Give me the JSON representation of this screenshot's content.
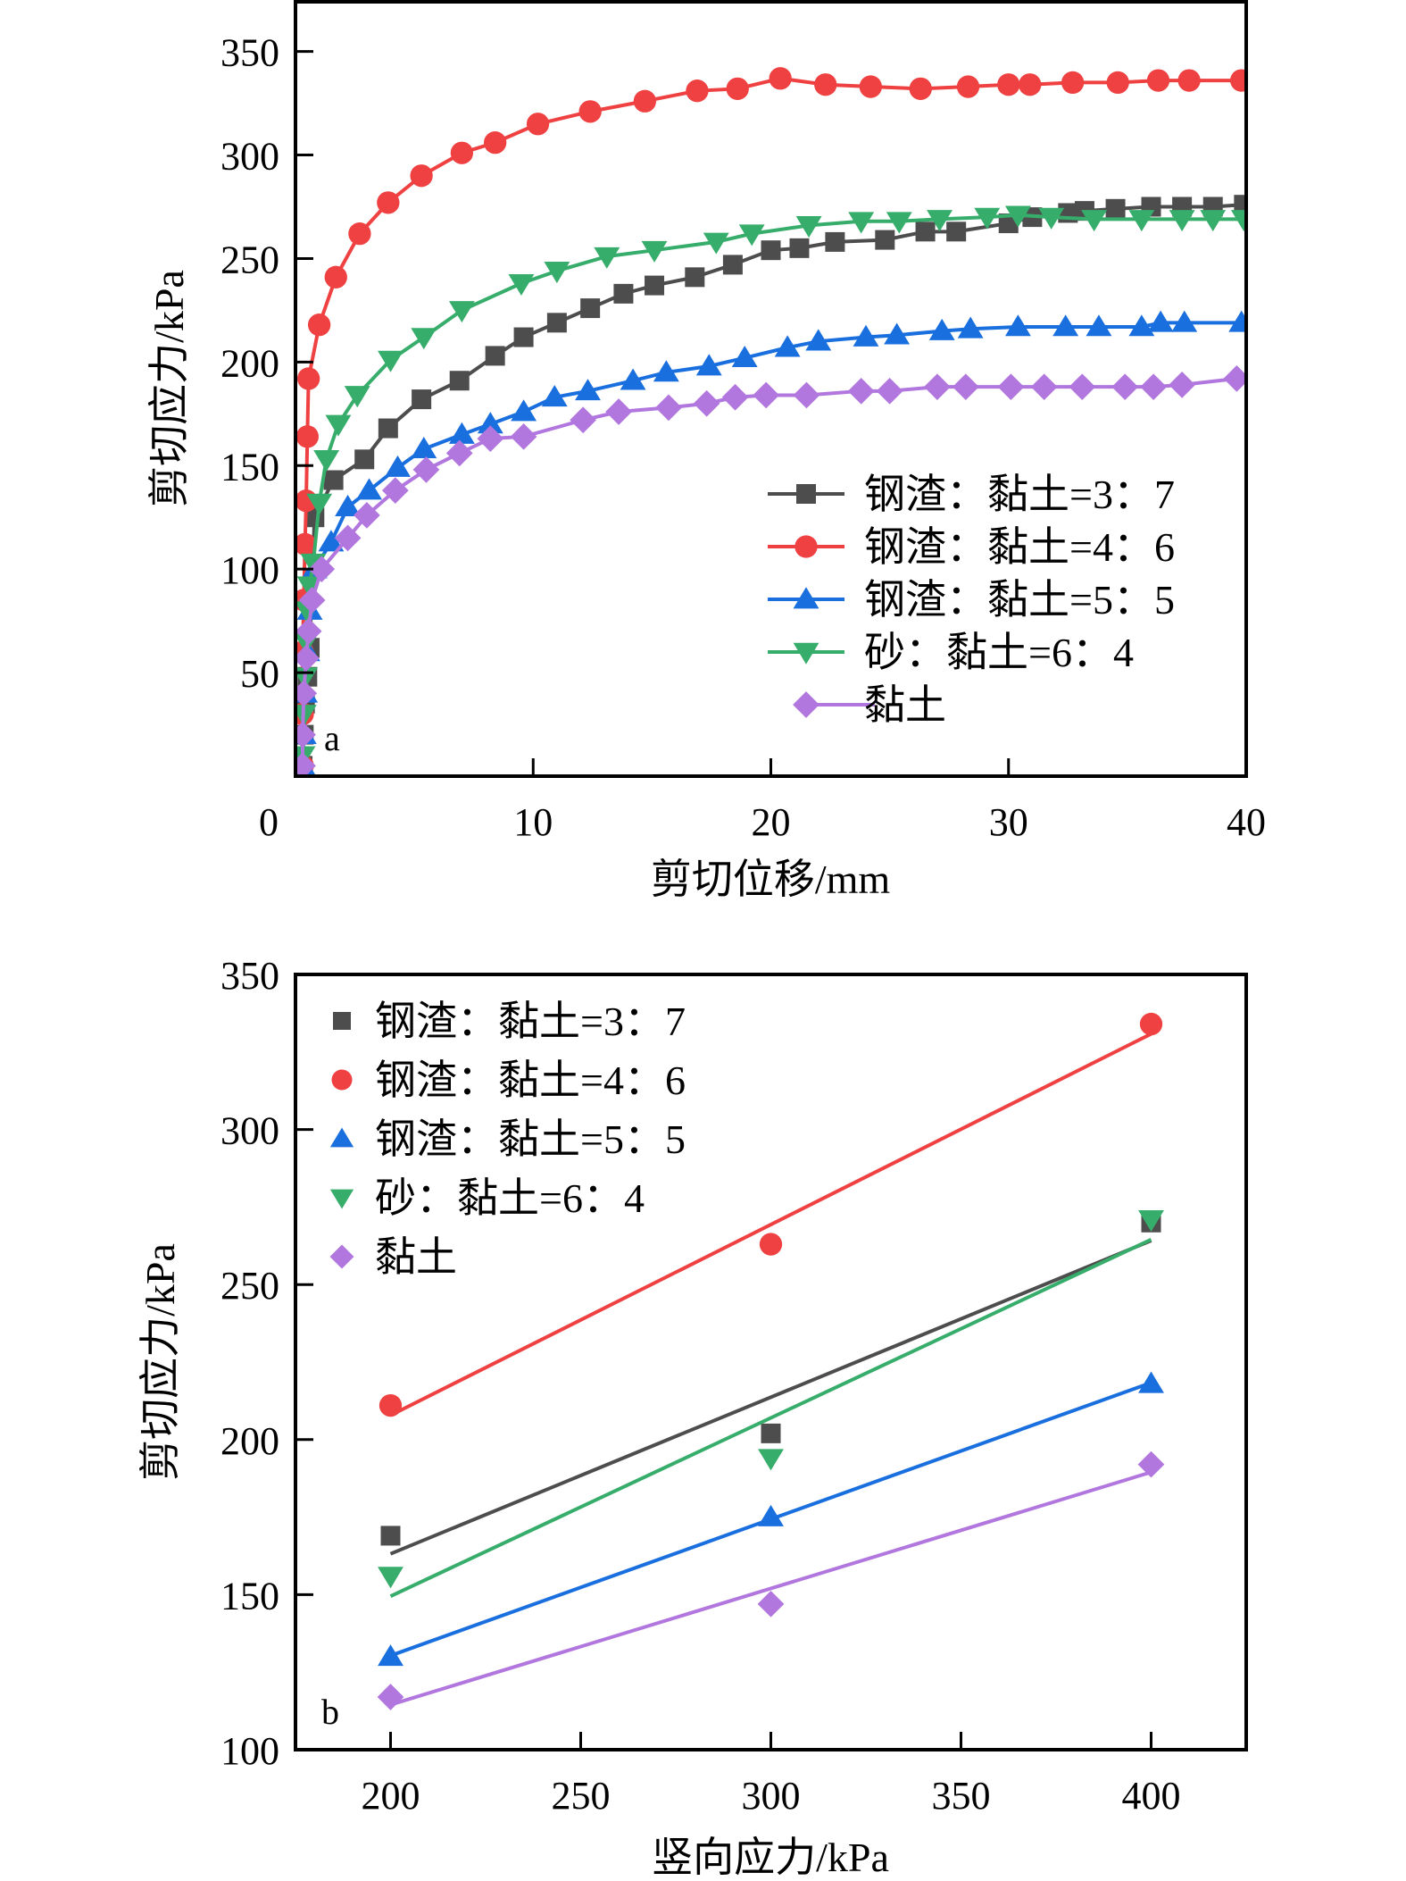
{
  "colors": {
    "s37": "#4d4d4d",
    "s46": "#ef4141",
    "s55": "#1a6fdf",
    "s64": "#37ad6b",
    "clay": "#b177de"
  },
  "chart_data": [
    {
      "id": "a",
      "type": "line",
      "panel_label": "a",
      "title": "",
      "xlabel": "剪切位移/mm",
      "ylabel": "剪切应力/kPa",
      "xlim": [
        0,
        40
      ],
      "ylim": [
        0,
        374
      ],
      "xticks": [
        0,
        10,
        20,
        30,
        40
      ],
      "yticks": [
        50,
        100,
        150,
        200,
        250,
        300,
        350
      ],
      "x_tick_labels": [
        "0",
        "10",
        "20",
        "30",
        "40"
      ],
      "y_tick_labels": [
        "50",
        "100",
        "150",
        "200",
        "250",
        "300",
        "350"
      ],
      "grid": false,
      "legend_position": "center-right",
      "series": [
        {
          "name": "钢渣：黏土=3：7",
          "color_key": "s37",
          "marker": "square",
          "x": [
            0.3,
            0.35,
            0.4,
            0.5,
            0.6,
            0.8,
            1.6,
            2.9,
            3.9,
            5.3,
            6.9,
            8.4,
            9.6,
            11.0,
            12.4,
            13.8,
            15.1,
            16.8,
            18.4,
            20.0,
            21.2,
            22.7,
            24.8,
            26.5,
            27.8,
            30.0,
            31.0,
            32.5,
            33.2,
            34.5,
            36.0,
            37.3,
            38.6,
            39.9
          ],
          "y": [
            5,
            20,
            35,
            48,
            62,
            125,
            143,
            153,
            168,
            182,
            191,
            203,
            212,
            219,
            226,
            233,
            237,
            241,
            247,
            254,
            255,
            258,
            259,
            263,
            263,
            267,
            270,
            272,
            273,
            274,
            275,
            275,
            275,
            276
          ]
        },
        {
          "name": "钢渣：黏土=4：6",
          "color_key": "s46",
          "marker": "circle",
          "x": [
            0.3,
            0.3,
            0.3,
            0.35,
            0.4,
            0.45,
            0.5,
            0.55,
            1.0,
            1.7,
            2.7,
            3.9,
            5.3,
            7.0,
            8.4,
            10.2,
            12.4,
            14.7,
            16.9,
            18.6,
            20.4,
            22.3,
            24.2,
            26.3,
            28.3,
            30.0,
            30.9,
            32.7,
            34.6,
            36.3,
            37.6,
            39.8
          ],
          "y": [
            5,
            30,
            60,
            85,
            112,
            133,
            164,
            192,
            218,
            241,
            262,
            277,
            290,
            301,
            306,
            315,
            321,
            326,
            331,
            332,
            337,
            334,
            333,
            332,
            333,
            334,
            334,
            335,
            335,
            336,
            336,
            336
          ]
        },
        {
          "name": "钢渣：黏土=5：5",
          "color_key": "s55",
          "marker": "triangle-up",
          "x": [
            0.3,
            0.35,
            0.4,
            0.5,
            0.6,
            0.8,
            1.5,
            2.2,
            3.1,
            4.3,
            5.4,
            7.0,
            8.2,
            9.6,
            10.9,
            12.3,
            14.2,
            15.6,
            17.4,
            18.9,
            20.7,
            22.0,
            24.0,
            25.3,
            27.2,
            28.4,
            30.4,
            32.4,
            33.8,
            35.6,
            36.4,
            37.4,
            39.8
          ],
          "y": [
            5,
            20,
            40,
            60,
            80,
            100,
            113,
            130,
            138,
            149,
            158,
            165,
            170,
            176,
            183,
            186,
            191,
            195,
            198,
            202,
            207,
            210,
            212,
            213,
            215,
            216,
            217,
            217,
            217,
            217,
            219,
            219,
            219
          ]
        },
        {
          "name": "砂：黏土=6：4",
          "color_key": "s64",
          "marker": "triangle-down",
          "x": [
            0.3,
            0.35,
            0.4,
            0.45,
            0.5,
            0.6,
            0.75,
            1.0,
            1.3,
            1.8,
            2.6,
            4.0,
            5.4,
            7.0,
            9.5,
            11.0,
            13.1,
            15.1,
            17.7,
            19.2,
            21.6,
            23.8,
            25.4,
            27.1,
            29.1,
            30.4,
            31.8,
            33.6,
            35.6,
            37.3,
            38.6,
            39.9
          ],
          "y": [
            10,
            30,
            48,
            65,
            80,
            92,
            103,
            132,
            153,
            170,
            184,
            201,
            212,
            225,
            238,
            244,
            251,
            254,
            258,
            262,
            266,
            268,
            268,
            269,
            270,
            271,
            270,
            269,
            269,
            269,
            269,
            269
          ]
        },
        {
          "name": "黏土",
          "color_key": "clay",
          "marker": "diamond",
          "x": [
            0.3,
            0.3,
            0.35,
            0.45,
            0.55,
            0.7,
            1.1,
            2.2,
            3.0,
            4.2,
            5.5,
            6.9,
            8.2,
            9.6,
            12.1,
            13.6,
            15.7,
            17.3,
            18.5,
            19.8,
            21.5,
            23.8,
            25.0,
            27.0,
            28.2,
            30.1,
            31.5,
            33.1,
            34.9,
            36.1,
            37.3,
            39.6
          ],
          "y": [
            5,
            20,
            40,
            57,
            70,
            85,
            100,
            115,
            126,
            138,
            148,
            156,
            163,
            164,
            172,
            176,
            178,
            180,
            183,
            184,
            184,
            186,
            186,
            188,
            188,
            188,
            188,
            188,
            188,
            188,
            189,
            192
          ]
        }
      ]
    },
    {
      "id": "b",
      "type": "scatter",
      "panel_label": "b",
      "title": "",
      "xlabel": "竖向应力/kPa",
      "ylabel": "剪切应力/kPa",
      "xlim": [
        175,
        425
      ],
      "ylim": [
        100,
        350
      ],
      "xticks": [
        200,
        250,
        300,
        350,
        400
      ],
      "yticks": [
        100,
        150,
        200,
        250,
        300,
        350
      ],
      "x_tick_labels": [
        "200",
        "250",
        "300",
        "350",
        "400"
      ],
      "y_tick_labels": [
        "100",
        "150",
        "200",
        "250",
        "300",
        "350"
      ],
      "grid": false,
      "legend_position": "top-left",
      "fit": "linear",
      "x": [
        200,
        300,
        400
      ],
      "series": [
        {
          "name": "钢渣：黏土=3：7",
          "color_key": "s37",
          "marker": "square",
          "values": [
            169,
            202,
            270
          ]
        },
        {
          "name": "钢渣：黏土=4：6",
          "color_key": "s46",
          "marker": "circle",
          "values": [
            211,
            263,
            334
          ]
        },
        {
          "name": "钢渣：黏土=5：5",
          "color_key": "s55",
          "marker": "triangle-up",
          "values": [
            130,
            175,
            218
          ]
        },
        {
          "name": "砂：黏土=6：4",
          "color_key": "s64",
          "marker": "triangle-down",
          "values": [
            156,
            194,
            271
          ]
        },
        {
          "name": "黏土",
          "color_key": "clay",
          "marker": "diamond",
          "values": [
            117,
            147,
            192
          ]
        }
      ]
    }
  ]
}
